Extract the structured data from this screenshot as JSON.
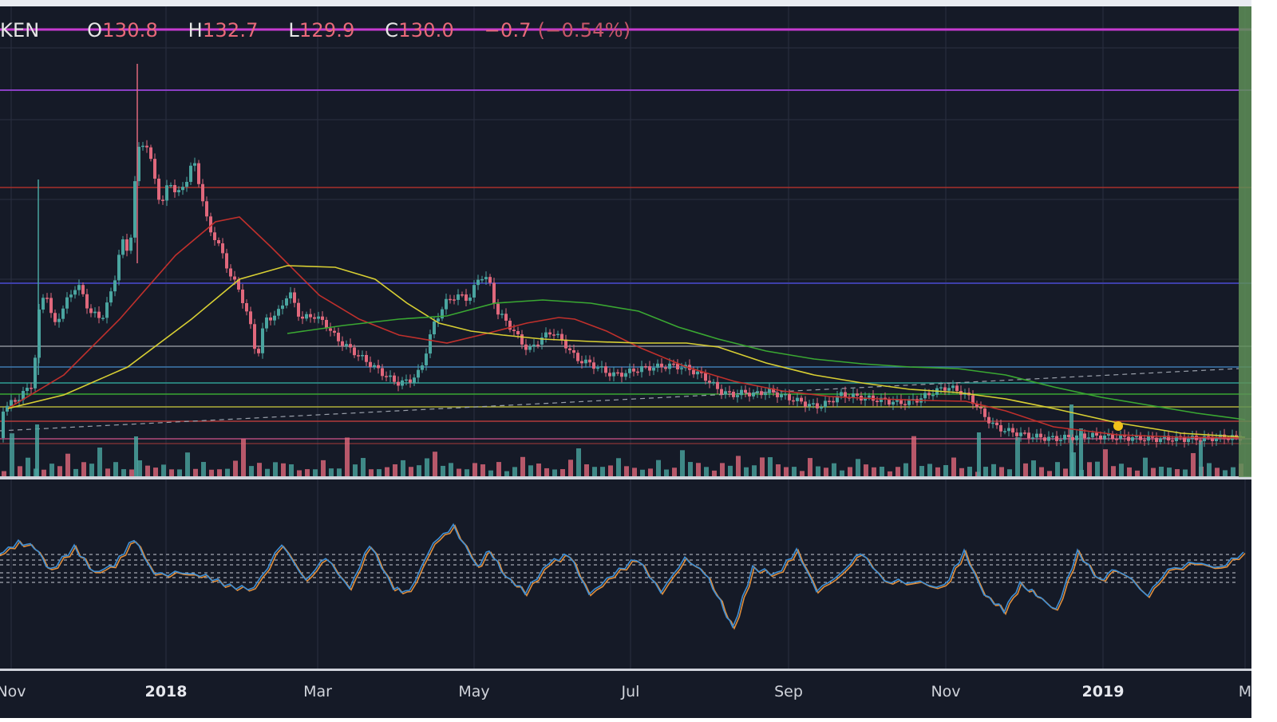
{
  "header": {
    "symbol_fragment": "KEN",
    "open_label": "O",
    "open_value": "130.8",
    "high_label": "H",
    "high_value": "132.7",
    "low_label": "L",
    "low_value": "129.9",
    "close_label": "C",
    "close_value": "130.0",
    "change": "−0.7",
    "change_pct": "(−0.54%)"
  },
  "colors": {
    "background": "#151a27",
    "grid": "#2a3040",
    "candle_up": "#4aa5a0",
    "candle_down": "#e0687c",
    "ma_fast": "#c0302c",
    "ma_mid": "#d8cf33",
    "ma_slow": "#3aa832",
    "stoch_k": "#3e8fd6",
    "stoch_d": "#e08e3c"
  },
  "chart_data": {
    "type": "line",
    "title": "",
    "x_axis": {
      "labels": [
        "Nov",
        "2018",
        "Mar",
        "May",
        "Jul",
        "Sep",
        "Nov",
        "2019",
        "M"
      ],
      "bold_labels": [
        "2018",
        "2019"
      ]
    },
    "price_series": {
      "name": "",
      "x": [
        2,
        20,
        40,
        45,
        55,
        65,
        80,
        95,
        110,
        125,
        140,
        150,
        160,
        170,
        180,
        190,
        200,
        210,
        220,
        230,
        240,
        250,
        260,
        270,
        280,
        290,
        300,
        310,
        320,
        330,
        345,
        360,
        375,
        390,
        405,
        420,
        440,
        460,
        480,
        495,
        510,
        525,
        540,
        555,
        570,
        585,
        600,
        610,
        620,
        630,
        645,
        660,
        675,
        690,
        705,
        720,
        735,
        750,
        765,
        780,
        800,
        820,
        840,
        860,
        880,
        900,
        915,
        930,
        945,
        960,
        975,
        990,
        1005,
        1020,
        1035,
        1050,
        1070,
        1090,
        1110,
        1130,
        1150,
        1170,
        1185,
        1200,
        1215,
        1230,
        1245,
        1260,
        1280,
        1300,
        1320,
        1340,
        1360,
        1380,
        1400,
        1420,
        1440,
        1460,
        1480,
        1500,
        1520,
        1540,
        1560
      ],
      "y": [
        512,
        500,
        480,
        400,
        360,
        410,
        380,
        355,
        390,
        400,
        360,
        300,
        320,
        190,
        175,
        215,
        260,
        225,
        245,
        230,
        200,
        240,
        290,
        300,
        330,
        350,
        370,
        400,
        450,
        400,
        395,
        365,
        400,
        395,
        405,
        425,
        440,
        455,
        470,
        480,
        478,
        465,
        410,
        380,
        370,
        375,
        345,
        350,
        390,
        400,
        420,
        440,
        425,
        415,
        430,
        450,
        455,
        462,
        470,
        468,
        462,
        460,
        458,
        462,
        472,
        490,
        495,
        492,
        494,
        490,
        495,
        500,
        505,
        510,
        505,
        495,
        497,
        500,
        503,
        505,
        500,
        490,
        485,
        490,
        500,
        520,
        535,
        540,
        545,
        548,
        550,
        548,
        546,
        547,
        548,
        549,
        550,
        550,
        550,
        550,
        549,
        548,
        549
      ]
    },
    "moving_averages": [
      {
        "name": "",
        "x": [
          10,
          80,
          150,
          220,
          270,
          300,
          340,
          400,
          450,
          500,
          560,
          610,
          660,
          700,
          720,
          760,
          800,
          860,
          920,
          980,
          1040,
          1100,
          1160,
          1210,
          1260,
          1320,
          1400,
          1480,
          1560
        ],
        "y": [
          512,
          470,
          400,
          320,
          278,
          272,
          310,
          370,
          400,
          420,
          430,
          418,
          405,
          398,
          400,
          415,
          435,
          460,
          478,
          490,
          497,
          500,
          502,
          503,
          515,
          535,
          545,
          548,
          549
        ]
      },
      {
        "name": "",
        "x": [
          10,
          80,
          160,
          240,
          300,
          360,
          420,
          470,
          510,
          550,
          590,
          630,
          680,
          740,
          800,
          860,
          900,
          960,
          1020,
          1080,
          1140,
          1200,
          1260,
          1320,
          1400,
          1480,
          1560
        ],
        "y": [
          512,
          495,
          460,
          400,
          350,
          333,
          335,
          350,
          380,
          405,
          415,
          420,
          425,
          428,
          430,
          430,
          435,
          455,
          470,
          480,
          488,
          492,
          500,
          512,
          530,
          543,
          548
        ]
      },
      {
        "name": "",
        "x": [
          360,
          430,
          500,
          560,
          620,
          680,
          740,
          800,
          850,
          900,
          960,
          1020,
          1080,
          1140,
          1200,
          1260,
          1320,
          1380,
          1440,
          1500,
          1560
        ],
        "y": [
          418,
          408,
          400,
          396,
          380,
          376,
          380,
          390,
          410,
          425,
          440,
          450,
          456,
          460,
          462,
          470,
          485,
          498,
          508,
          518,
          526
        ]
      }
    ],
    "volume_series": {
      "name": "",
      "levels": [
        0.18,
        0.9,
        0.3,
        0.4,
        0.2,
        0.15,
        0.3,
        0.25,
        0.5,
        0.2,
        0.3,
        0.4,
        0.6,
        0.25,
        0.3,
        0.2,
        0.15,
        0.4,
        0.25,
        0.2,
        0.3,
        0.15,
        0.2,
        0.5,
        0.25,
        0.3,
        0.2,
        0.15,
        0.2,
        0.35,
        0.9,
        0.25,
        0.3,
        0.2,
        0.3,
        0.4,
        0.25,
        0.2,
        0.15,
        0.2,
        0.35,
        0.2
      ]
    },
    "stochastic": {
      "name": "",
      "levels_upper": [
        695,
        702,
        708
      ],
      "levels_lower": [
        718,
        724,
        730
      ],
      "k": [
        [
          0,
          695
        ],
        [
          25,
          680
        ],
        [
          45,
          685
        ],
        [
          65,
          715
        ],
        [
          95,
          686
        ],
        [
          120,
          718
        ],
        [
          145,
          708
        ],
        [
          170,
          675
        ],
        [
          195,
          720
        ],
        [
          230,
          718
        ],
        [
          260,
          722
        ],
        [
          290,
          735
        ],
        [
          320,
          738
        ],
        [
          355,
          682
        ],
        [
          385,
          728
        ],
        [
          410,
          698
        ],
        [
          440,
          738
        ],
        [
          465,
          682
        ],
        [
          495,
          738
        ],
        [
          515,
          742
        ],
        [
          545,
          680
        ],
        [
          570,
          660
        ],
        [
          600,
          710
        ],
        [
          615,
          690
        ],
        [
          635,
          722
        ],
        [
          660,
          742
        ],
        [
          690,
          705
        ],
        [
          715,
          695
        ],
        [
          740,
          745
        ],
        [
          770,
          720
        ],
        [
          800,
          700
        ],
        [
          830,
          742
        ],
        [
          860,
          700
        ],
        [
          885,
          718
        ],
        [
          905,
          755
        ],
        [
          920,
          788
        ],
        [
          945,
          712
        ],
        [
          975,
          720
        ],
        [
          1000,
          690
        ],
        [
          1025,
          740
        ],
        [
          1055,
          720
        ],
        [
          1080,
          692
        ],
        [
          1110,
          728
        ],
        [
          1145,
          730
        ],
        [
          1185,
          735
        ],
        [
          1210,
          692
        ],
        [
          1235,
          745
        ],
        [
          1260,
          765
        ],
        [
          1280,
          732
        ],
        [
          1300,
          745
        ],
        [
          1325,
          765
        ],
        [
          1352,
          692
        ],
        [
          1380,
          728
        ],
        [
          1400,
          712
        ],
        [
          1440,
          745
        ],
        [
          1465,
          715
        ],
        [
          1500,
          705
        ],
        [
          1530,
          712
        ],
        [
          1560,
          692
        ]
      ]
    }
  }
}
